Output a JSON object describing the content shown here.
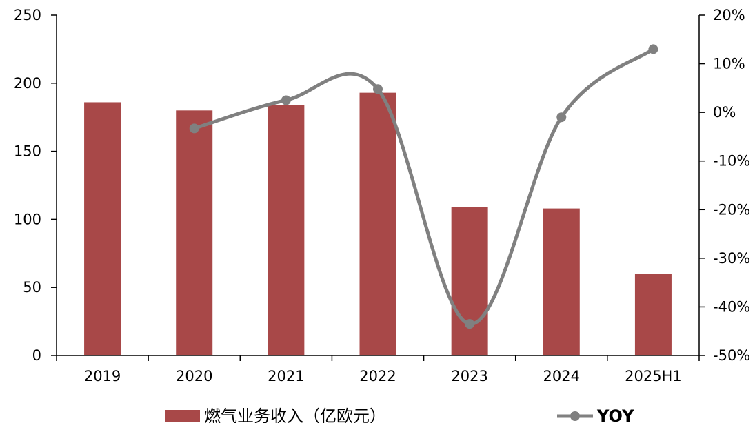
{
  "chart_data": {
    "type": "bar",
    "categories": [
      "2019",
      "2020",
      "2021",
      "2022",
      "2023",
      "2024",
      "2025H1"
    ],
    "series": [
      {
        "name": "燃气业务收入（亿欧元）",
        "type": "bar",
        "axis": "left",
        "values": [
          186,
          180,
          184,
          193,
          109,
          108,
          60
        ],
        "color": "#a84848"
      },
      {
        "name": "YOY",
        "type": "line",
        "axis": "right",
        "smooth": true,
        "values": [
          null,
          -3.3,
          2.5,
          4.8,
          -43.5,
          -1.0,
          13.0
        ],
        "color": "#808080"
      }
    ],
    "y_left": {
      "min": 0,
      "max": 250,
      "ticks": [
        "0",
        "50",
        "100",
        "150",
        "200",
        "250"
      ]
    },
    "y_right": {
      "min": -50,
      "max": 20,
      "ticks": [
        "-50%",
        "-40%",
        "-30%",
        "-20%",
        "-10%",
        "0%",
        "10%",
        "20%"
      ]
    },
    "grid": false,
    "legend_position": "bottom"
  }
}
